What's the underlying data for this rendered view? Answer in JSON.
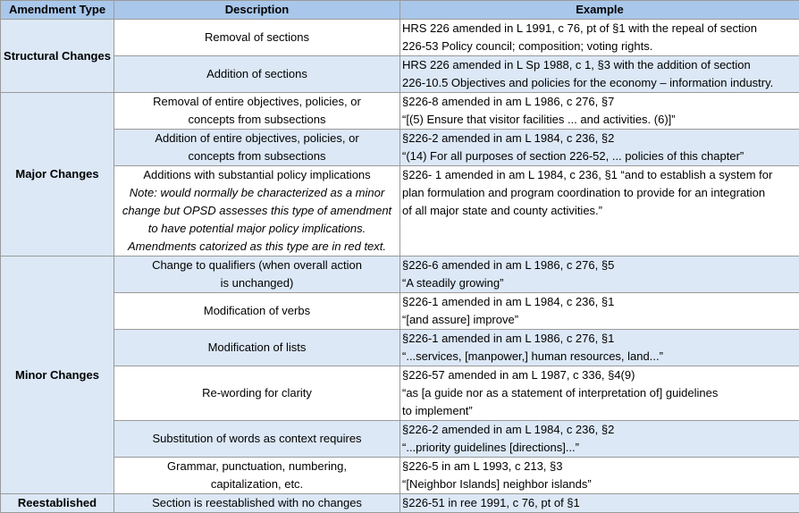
{
  "header": [
    "Amendment Type",
    "Description",
    "Example"
  ],
  "groups": [
    {
      "category": "Structural Changes",
      "rows": [
        {
          "description": [
            "Removal of sections"
          ],
          "example": [
            "HRS 226 amended in L 1991, c 76, pt of §1 with the repeal of section",
            "226-53 Policy council; composition; voting rights."
          ]
        },
        {
          "description": [
            "Addition of sections"
          ],
          "example": [
            "HRS 226 amended in L Sp 1988, c 1, §3 with the addition of section",
            "226-10.5 Objectives and policies for the economy – information industry."
          ]
        }
      ]
    },
    {
      "category": "Major Changes",
      "rows": [
        {
          "description": [
            "Removal of entire objectives, policies, or",
            "concepts from subsections"
          ],
          "example": [
            "§226-8 amended in am L 1986, c 276, §7",
            "“[(5) Ensure that visitor facilities ... and activities. (6)]”"
          ]
        },
        {
          "description": [
            "Addition of entire objectives, policies, or",
            "concepts from subsections"
          ],
          "example": [
            "§226-2 amended in am L 1984, c 236, §2",
            "“(14) For all purposes of section 226-52, ... policies of this chapter”"
          ]
        },
        {
          "description": [
            "Additions with substantial policy implications"
          ],
          "note": [
            "Note: would normally be characterized as a minor",
            "change but OPSD assesses this type of amendment",
            "to have potential major policy implications.",
            "Amendments catorized as this type are in red text."
          ],
          "example": [
            "§226- 1 amended in am L 1984, c 236, §1 “and to establish a system for",
            "plan formulation and program coordination to provide for an integration",
            "of all major state and county activities.”"
          ]
        }
      ]
    },
    {
      "category": "Minor Changes",
      "rows": [
        {
          "description": [
            "Change to qualifiers (when overall action",
            "is unchanged)"
          ],
          "example": [
            "§226-6 amended in am L 1986, c 276, §5",
            "“A steadily growing”"
          ]
        },
        {
          "description": [
            "Modification of verbs"
          ],
          "example": [
            "§226-1 amended in am L 1984, c 236, §1",
            "“[and assure] improve”"
          ]
        },
        {
          "description": [
            "Modification of lists"
          ],
          "example": [
            "§226-1 amended in am L 1986, c 276, §1",
            "“...services, [manpower,] human resources, land...”"
          ]
        },
        {
          "description": [
            "Re-wording for clarity"
          ],
          "example": [
            "§226-57 amended in am L 1987, c 336, §4(9)",
            "“as [a guide nor as a statement of interpretation of] guidelines",
            "to implement”"
          ]
        },
        {
          "description": [
            "Substitution of words as context requires"
          ],
          "example": [
            "§226-2 amended in am L 1984, c 236, §2",
            "“...priority guidelines [directions]...”"
          ]
        },
        {
          "description": [
            "Grammar, punctuation, numbering,",
            "capitalization, etc."
          ],
          "example": [
            "§226-5 in am L 1993, c 213, §3",
            "“[Neighbor Islands] neighbor islands”"
          ]
        }
      ]
    },
    {
      "category": "Reestablished",
      "rows": [
        {
          "description": [
            "Section is reestablished with no changes"
          ],
          "example": [
            "§226-51 in ree 1991, c 76, pt of §1"
          ]
        }
      ]
    }
  ]
}
